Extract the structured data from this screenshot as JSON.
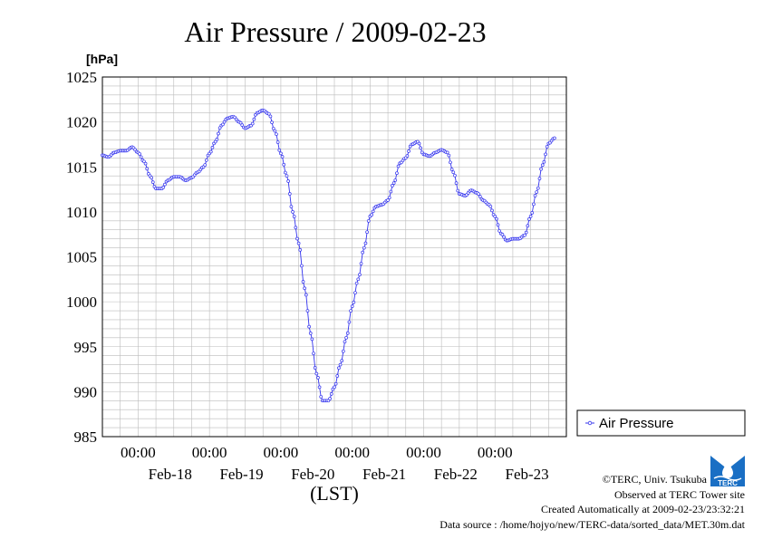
{
  "chart_data": {
    "type": "line",
    "title": "Air Pressure / 2009-02-23",
    "ylabel": "[hPa]",
    "xlabel": "(LST)",
    "ylim": [
      985,
      1025
    ],
    "y_ticks": [
      985,
      990,
      995,
      1000,
      1005,
      1010,
      1015,
      1020,
      1025
    ],
    "x_ticks": [
      {
        "time": "00:00",
        "date": "Feb-18"
      },
      {
        "time": "00:00",
        "date": "Feb-19"
      },
      {
        "time": "00:00",
        "date": "Feb-20"
      },
      {
        "time": "00:00",
        "date": "Feb-21"
      },
      {
        "time": "00:00",
        "date": "Feb-22"
      },
      {
        "time": "00:00",
        "date": "Feb-23"
      }
    ],
    "grid": true,
    "legend_position": "right",
    "series": [
      {
        "name": "Air Pressure",
        "color": "#3333ee",
        "points": [
          [
            "2009-02-17 12:00",
            1016.3
          ],
          [
            "2009-02-17 14:00",
            1016.1
          ],
          [
            "2009-02-17 16:00",
            1016.6
          ],
          [
            "2009-02-17 18:00",
            1016.8
          ],
          [
            "2009-02-17 20:00",
            1016.8
          ],
          [
            "2009-02-17 22:00",
            1017.2
          ],
          [
            "2009-02-18 00:00",
            1016.6
          ],
          [
            "2009-02-18 02:00",
            1015.6
          ],
          [
            "2009-02-18 04:00",
            1014.0
          ],
          [
            "2009-02-18 06:00",
            1012.6
          ],
          [
            "2009-02-18 08:00",
            1012.6
          ],
          [
            "2009-02-18 10:00",
            1013.5
          ],
          [
            "2009-02-18 12:00",
            1013.9
          ],
          [
            "2009-02-18 14:00",
            1013.9
          ],
          [
            "2009-02-18 16:00",
            1013.5
          ],
          [
            "2009-02-18 18:00",
            1013.8
          ],
          [
            "2009-02-18 20:00",
            1014.4
          ],
          [
            "2009-02-18 22:00",
            1015.0
          ],
          [
            "2009-02-19 00:00",
            1016.5
          ],
          [
            "2009-02-19 02:00",
            1017.8
          ],
          [
            "2009-02-19 04:00",
            1019.6
          ],
          [
            "2009-02-19 06:00",
            1020.4
          ],
          [
            "2009-02-19 08:00",
            1020.6
          ],
          [
            "2009-02-19 10:00",
            1020.0
          ],
          [
            "2009-02-19 12:00",
            1019.3
          ],
          [
            "2009-02-19 14:00",
            1019.6
          ],
          [
            "2009-02-19 16:00",
            1021.0
          ],
          [
            "2009-02-19 18:00",
            1021.3
          ],
          [
            "2009-02-19 20:00",
            1020.9
          ],
          [
            "2009-02-19 22:00",
            1019.0
          ],
          [
            "2009-02-20 00:00",
            1016.5
          ],
          [
            "2009-02-20 02:00",
            1014.0
          ],
          [
            "2009-02-20 04:00",
            1010.0
          ],
          [
            "2009-02-20 06:00",
            1006.5
          ],
          [
            "2009-02-20 08:00",
            1001.5
          ],
          [
            "2009-02-20 10:00",
            996.5
          ],
          [
            "2009-02-20 12:00",
            992.0
          ],
          [
            "2009-02-20 14:00",
            989.0
          ],
          [
            "2009-02-20 16:00",
            989.0
          ],
          [
            "2009-02-20 18:00",
            990.5
          ],
          [
            "2009-02-20 20:00",
            993.0
          ],
          [
            "2009-02-20 22:00",
            996.0
          ],
          [
            "2009-02-21 00:00",
            999.5
          ],
          [
            "2009-02-21 02:00",
            1002.5
          ],
          [
            "2009-02-21 04:00",
            1006.0
          ],
          [
            "2009-02-21 06:00",
            1009.5
          ],
          [
            "2009-02-21 08:00",
            1010.6
          ],
          [
            "2009-02-21 10:00",
            1010.8
          ],
          [
            "2009-02-21 12:00",
            1011.3
          ],
          [
            "2009-02-21 14:00",
            1013.2
          ],
          [
            "2009-02-21 16:00",
            1015.4
          ],
          [
            "2009-02-21 18:00",
            1016.0
          ],
          [
            "2009-02-21 20:00",
            1017.5
          ],
          [
            "2009-02-21 22:00",
            1017.8
          ],
          [
            "2009-02-22 00:00",
            1016.4
          ],
          [
            "2009-02-22 02:00",
            1016.2
          ],
          [
            "2009-02-22 04:00",
            1016.6
          ],
          [
            "2009-02-22 06:00",
            1016.9
          ],
          [
            "2009-02-22 08:00",
            1016.6
          ],
          [
            "2009-02-22 10:00",
            1014.4
          ],
          [
            "2009-02-22 12:00",
            1012.0
          ],
          [
            "2009-02-22 14:00",
            1011.8
          ],
          [
            "2009-02-22 16:00",
            1012.4
          ],
          [
            "2009-02-22 18:00",
            1012.1
          ],
          [
            "2009-02-22 20:00",
            1011.3
          ],
          [
            "2009-02-22 22:00",
            1010.8
          ],
          [
            "2009-02-23 00:00",
            1009.5
          ],
          [
            "2009-02-23 02:00",
            1007.6
          ],
          [
            "2009-02-23 04:00",
            1006.8
          ],
          [
            "2009-02-23 06:00",
            1007.0
          ],
          [
            "2009-02-23 08:00",
            1007.0
          ],
          [
            "2009-02-23 10:00",
            1007.4
          ],
          [
            "2009-02-23 12:00",
            1009.5
          ],
          [
            "2009-02-23 14:00",
            1012.2
          ],
          [
            "2009-02-23 16:00",
            1015.2
          ],
          [
            "2009-02-23 18:00",
            1017.6
          ],
          [
            "2009-02-23 20:00",
            1018.2
          ]
        ]
      }
    ]
  },
  "legend": {
    "label": "Air Pressure"
  },
  "credits": {
    "copyright": "©TERC, Univ. Tsukuba",
    "observed": "Observed at TERC Tower site",
    "created": "Created Automatically at 2009-02-23/23:32:21",
    "source": "Data source : /home/hojyo/new/TERC-data/sorted_data/MET.30m.dat"
  },
  "logo": {
    "text": "TERC",
    "color": "#1a6fc4"
  }
}
